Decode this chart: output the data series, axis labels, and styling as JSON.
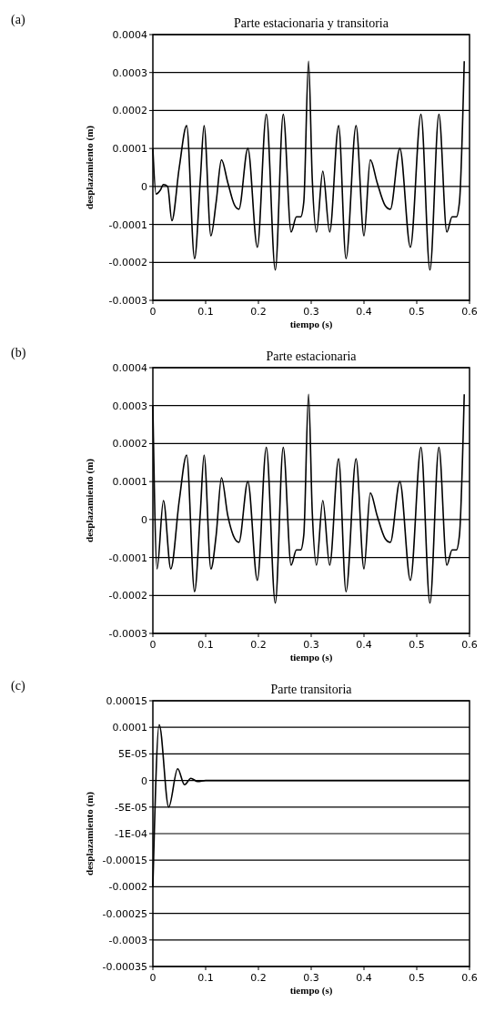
{
  "chart_data": [
    {
      "type": "line",
      "title": "Parte estacionaria y transitoria",
      "xlabel": "tiempo (s)",
      "ylabel": "desplazamiento (m)",
      "annotations": [
        "(a)"
      ],
      "grid": "y",
      "marker": "none",
      "line_style": "solid",
      "color": "#000000",
      "xlim": [
        0,
        0.6
      ],
      "xticks": [
        0,
        0.1,
        0.2,
        0.3,
        0.4,
        0.5,
        0.6
      ],
      "ylim": [
        -0.0003,
        0.0004
      ],
      "yticks": [
        -0.0003,
        -0.0002,
        -0.0001,
        0,
        0.0001,
        0.0002,
        0.0003,
        0.0004
      ],
      "x": [
        0,
        0.006,
        0.014,
        0.02,
        0.028,
        0.036,
        0.05,
        0.064,
        0.079,
        0.09,
        0.097,
        0.11,
        0.12,
        0.13,
        0.142,
        0.155,
        0.163,
        0.18,
        0.198,
        0.215,
        0.232,
        0.247,
        0.262,
        0.272,
        0.28,
        0.286,
        0.295,
        0.302,
        0.31,
        0.322,
        0.335,
        0.352,
        0.366,
        0.385,
        0.4,
        0.412,
        0.425,
        0.44,
        0.45,
        0.468,
        0.488,
        0.508,
        0.525,
        0.542,
        0.557,
        0.567,
        0.575,
        0.581,
        0.59
      ],
      "values": [
        0.0001,
        -2e-05,
        -1e-05,
        5e-06,
        0,
        -9e-05,
        5e-05,
        0.00016,
        -0.00019,
        2e-05,
        0.00016,
        -0.00013,
        -4e-05,
        7e-05,
        1e-05,
        -5e-05,
        -6e-05,
        0.0001,
        -0.00016,
        0.00019,
        -0.00022,
        0.00019,
        -0.00012,
        -8e-05,
        -8e-05,
        -4e-05,
        0.00033,
        2e-05,
        -0.00012,
        4e-05,
        -0.00012,
        0.00016,
        -0.00019,
        0.00016,
        -0.00013,
        7e-05,
        1e-05,
        -5e-05,
        -6e-05,
        0.0001,
        -0.00016,
        0.00019,
        -0.00022,
        0.00019,
        -0.00012,
        -8e-05,
        -8e-05,
        -4e-05,
        0.00033
      ]
    },
    {
      "type": "line",
      "title": "Parte estacionaria",
      "xlabel": "tiempo (s)",
      "ylabel": "desplazamiento (m)",
      "annotations": [
        "(b)"
      ],
      "grid": "y",
      "marker": "none",
      "line_style": "solid",
      "color": "#000000",
      "xlim": [
        0,
        0.6
      ],
      "xticks": [
        0,
        0.1,
        0.2,
        0.3,
        0.4,
        0.5,
        0.6
      ],
      "ylim": [
        -0.0003,
        0.0004
      ],
      "yticks": [
        -0.0003,
        -0.0002,
        -0.0001,
        0,
        0.0001,
        0.0002,
        0.0003,
        0.0004
      ],
      "x": [
        0,
        0.008,
        0.02,
        0.034,
        0.05,
        0.064,
        0.079,
        0.09,
        0.097,
        0.11,
        0.12,
        0.13,
        0.142,
        0.155,
        0.163,
        0.18,
        0.198,
        0.215,
        0.232,
        0.247,
        0.262,
        0.272,
        0.28,
        0.286,
        0.295,
        0.302,
        0.31,
        0.322,
        0.335,
        0.352,
        0.366,
        0.385,
        0.4,
        0.412,
        0.425,
        0.44,
        0.45,
        0.468,
        0.488,
        0.508,
        0.525,
        0.542,
        0.557,
        0.567,
        0.575,
        0.581,
        0.59
      ],
      "values": [
        0.0003,
        -0.00013,
        5e-05,
        -0.00013,
        5e-05,
        0.00017,
        -0.00019,
        2e-05,
        0.00017,
        -0.00013,
        -4e-05,
        0.00011,
        1e-05,
        -5e-05,
        -6e-05,
        0.0001,
        -0.00016,
        0.00019,
        -0.00022,
        0.00019,
        -0.00012,
        -8e-05,
        -8e-05,
        -4e-05,
        0.00033,
        2e-05,
        -0.00012,
        5e-05,
        -0.00012,
        0.00016,
        -0.00019,
        0.00016,
        -0.00013,
        7e-05,
        1e-05,
        -5e-05,
        -6e-05,
        0.0001,
        -0.00016,
        0.00019,
        -0.00022,
        0.00019,
        -0.00012,
        -8e-05,
        -8e-05,
        -4e-05,
        0.00033
      ]
    },
    {
      "type": "line",
      "title": "Parte transitoria",
      "xlabel": "tiempo (s)",
      "ylabel": "desplazamiento (m)",
      "annotations": [
        "(c)"
      ],
      "grid": "y",
      "marker": "none",
      "line_style": "solid",
      "color": "#000000",
      "xlim": [
        0,
        0.6
      ],
      "xticks": [
        0,
        0.1,
        0.2,
        0.3,
        0.4,
        0.5,
        0.6
      ],
      "ylim": [
        -0.00035,
        0.00015
      ],
      "yticks": [
        {
          "value": -0.00035,
          "label": "-0.00035"
        },
        {
          "value": -0.0003,
          "label": "-0.0003"
        },
        {
          "value": -0.00025,
          "label": "-0.00025"
        },
        {
          "value": -0.0002,
          "label": "-0.0002"
        },
        {
          "value": -0.00015,
          "label": "-0.00015"
        },
        {
          "value": -0.0001,
          "label": "-1E-04"
        },
        {
          "value": -5e-05,
          "label": "-5E-05"
        },
        {
          "value": 0,
          "label": "0"
        },
        {
          "value": 5e-05,
          "label": "5E-05"
        },
        {
          "value": 0.0001,
          "label": "0.0001"
        },
        {
          "value": 0.00015,
          "label": "0.00015"
        }
      ],
      "x": [
        0,
        0.012,
        0.03,
        0.047,
        0.06,
        0.072,
        0.085,
        0.1,
        0.2,
        0.3,
        0.4,
        0.5,
        0.6
      ],
      "values": [
        -0.0002,
        0.000105,
        -5e-05,
        2.2e-05,
        -8e-06,
        4e-06,
        -2e-06,
        0,
        0,
        0,
        0,
        0,
        0
      ]
    }
  ]
}
